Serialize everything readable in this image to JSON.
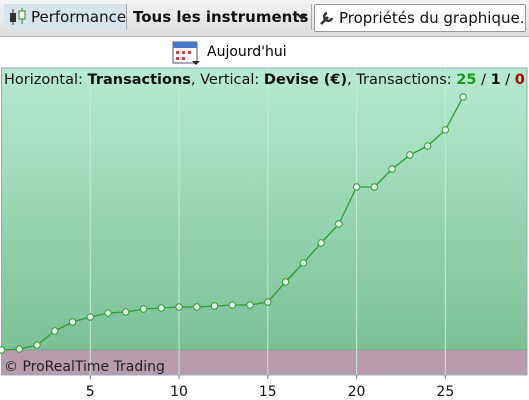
{
  "toolbar": {
    "performance": "Performance",
    "instruments": "Tous les instruments",
    "properties": "Propriétés du graphique..."
  },
  "today": "Aujourd'hui",
  "info": [
    "Horizontal: ",
    "Transactions",
    ", Vertical: ",
    "Devise (€)",
    ", Transactions: ",
    25,
    " / ",
    1,
    " / ",
    0
  ],
  "chart_data": {
    "type": "line",
    "watermark": "© ProRealTime Trading",
    "x": [
      0,
      1,
      2,
      3,
      4,
      5,
      6,
      7,
      8,
      9,
      10,
      11,
      12,
      13,
      14,
      15,
      16,
      17,
      18,
      19,
      20,
      21,
      22,
      23,
      24,
      25,
      26
    ],
    "values": [
      0,
      1,
      5,
      19,
      28,
      33,
      37,
      38,
      41,
      42,
      43,
      43,
      44,
      45,
      45,
      48,
      68,
      87,
      107,
      126,
      163,
      163,
      181,
      195,
      204,
      220,
      253
    ],
    "color": "#2e9e2e",
    "xlim": [
      0,
      29.6
    ],
    "ylim": [
      -25,
      282
    ],
    "xticks": [
      5,
      10,
      15,
      20,
      25
    ],
    "grid": true
  }
}
